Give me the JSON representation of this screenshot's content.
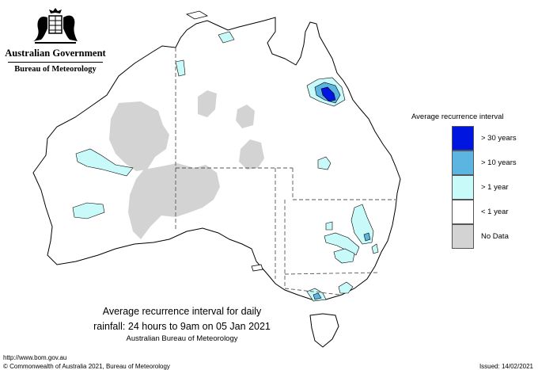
{
  "header": {
    "government": "Australian Government",
    "bureau": "Bureau of Meteorology",
    "crest_icon": "coat-of-arms-icon"
  },
  "legend": {
    "title": "Average recurrence interval",
    "items": [
      {
        "label": "> 30 years",
        "color": "#0015e0"
      },
      {
        "label": "> 10 years",
        "color": "#5cb4e0"
      },
      {
        "label": "> 1 year",
        "color": "#c8fafa"
      },
      {
        "label": "< 1 year",
        "color": "#ffffff"
      },
      {
        "label": "No Data",
        "color": "#d3d3d3"
      }
    ]
  },
  "caption": {
    "line1": "Average recurrence interval for daily",
    "line2": "rainfall: 24 hours to 9am on 05 Jan 2021",
    "line3": "Australian Bureau of Meteorology"
  },
  "footer": {
    "url": "http://www.bom.gov.au",
    "copyright": "© Commonwealth of Australia 2021, Bureau of Meteorology",
    "issued": "Issued: 14/02/2021"
  },
  "map": {
    "region": "Australia",
    "colors": {
      "nodata": "#d3d3d3",
      "gt1": "#c8fafa",
      "gt10": "#5cb4e0",
      "gt30": "#0015e0",
      "outline": "#000000"
    }
  }
}
